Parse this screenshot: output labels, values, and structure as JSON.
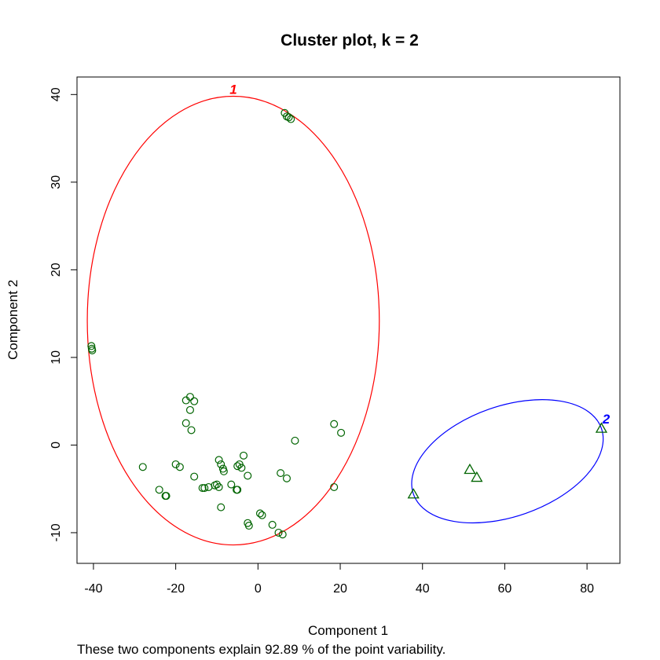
{
  "chart_data": {
    "type": "scatter",
    "title": "Cluster plot, k =  2",
    "xlabel": "Component 1",
    "ylabel": "Component 2",
    "caption": "These two components explain 92.89 % of the point variability.",
    "xlim": [
      -44,
      88
    ],
    "ylim": [
      -13.5,
      42
    ],
    "xticks": [
      -40,
      -20,
      0,
      20,
      40,
      60,
      80
    ],
    "yticks": [
      -10,
      0,
      10,
      20,
      30,
      40
    ],
    "grid": false,
    "point_color": "#006400",
    "clusters": [
      {
        "label": "1",
        "color": "#ff0000",
        "marker": "circle",
        "ellipse": {
          "cx": -6,
          "cy": 14.2,
          "rx": 35.5,
          "ry": 25.6
        },
        "points": [
          [
            6.5,
            37.9
          ],
          [
            7,
            37.5
          ],
          [
            7.5,
            37.4
          ],
          [
            8,
            37.2
          ],
          [
            -40.5,
            11.3
          ],
          [
            -40.4,
            11.0
          ],
          [
            -40.3,
            10.8
          ],
          [
            -16.5,
            5.5
          ],
          [
            -15.5,
            5.0
          ],
          [
            -17.5,
            5.1
          ],
          [
            -16.5,
            4.0
          ],
          [
            -17.5,
            2.5
          ],
          [
            -16.2,
            1.7
          ],
          [
            18.5,
            2.4
          ],
          [
            20.2,
            1.4
          ],
          [
            9,
            0.5
          ],
          [
            -28,
            -2.5
          ],
          [
            -20,
            -2.2
          ],
          [
            -19,
            -2.5
          ],
          [
            -9.5,
            -1.7
          ],
          [
            -9,
            -2.2
          ],
          [
            -8.5,
            -2.7
          ],
          [
            -8.3,
            -3.0
          ],
          [
            -5,
            -2.4
          ],
          [
            -4.5,
            -2.2
          ],
          [
            -4,
            -2.6
          ],
          [
            -3.5,
            -1.2
          ],
          [
            -2.5,
            -3.5
          ],
          [
            -15.5,
            -3.6
          ],
          [
            5.5,
            -3.2
          ],
          [
            7,
            -3.8
          ],
          [
            -24,
            -5.1
          ],
          [
            -22.5,
            -5.8
          ],
          [
            -22.3,
            -5.8
          ],
          [
            -13.5,
            -4.9
          ],
          [
            -13,
            -4.9
          ],
          [
            -12,
            -4.8
          ],
          [
            -10.5,
            -4.6
          ],
          [
            -10,
            -4.5
          ],
          [
            -9.5,
            -4.8
          ],
          [
            -6.5,
            -4.5
          ],
          [
            -5.2,
            -5.1
          ],
          [
            -5,
            -5.1
          ],
          [
            18.5,
            -4.8
          ],
          [
            -9,
            -7.1
          ],
          [
            0.5,
            -7.8
          ],
          [
            1,
            -8.0
          ],
          [
            -2.5,
            -8.9
          ],
          [
            -2.2,
            -9.2
          ],
          [
            3.5,
            -9.1
          ],
          [
            5,
            -10.0
          ],
          [
            6,
            -10.2
          ]
        ]
      },
      {
        "label": "2",
        "color": "#0000ff",
        "marker": "triangle",
        "ellipse": {
          "p1": [
            37.8,
            -5.6
          ],
          "p2": [
            83.5,
            1.9
          ],
          "semi_minor": 1.5
        },
        "points": [
          [
            37.8,
            -5.6
          ],
          [
            51.5,
            -2.8
          ],
          [
            53.2,
            -3.7
          ],
          [
            83.5,
            1.9
          ]
        ]
      }
    ]
  }
}
